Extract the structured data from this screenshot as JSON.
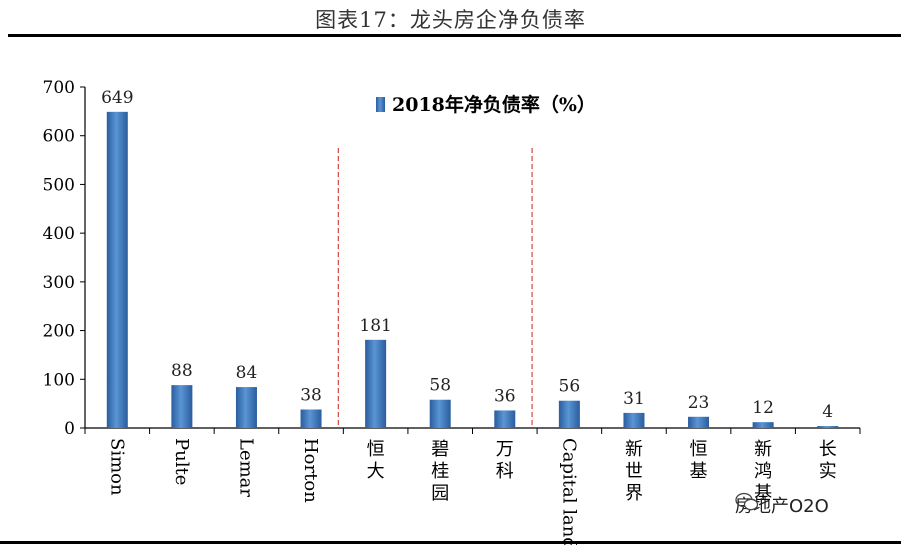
{
  "title": "图表17：龙头房企净负债率",
  "watermark": "房地产O2O",
  "chart_data": {
    "type": "bar",
    "legend": "2018年净负债率（%）",
    "categories": [
      "Simon",
      "Pulte",
      "Lemar",
      "Horton",
      "恒大",
      "碧桂园",
      "万科",
      "Capital land",
      "新世界",
      "恒基",
      "新鸿基",
      "长实"
    ],
    "values": [
      649,
      88,
      84,
      38,
      181,
      58,
      36,
      56,
      31,
      23,
      12,
      4
    ],
    "yticks": [
      0,
      100,
      200,
      300,
      400,
      500,
      600,
      700
    ],
    "ylim": [
      0,
      700
    ],
    "bar_color": "#3f78b8",
    "group_separators_after": [
      3,
      6
    ],
    "separator_color": "#d9443f"
  }
}
